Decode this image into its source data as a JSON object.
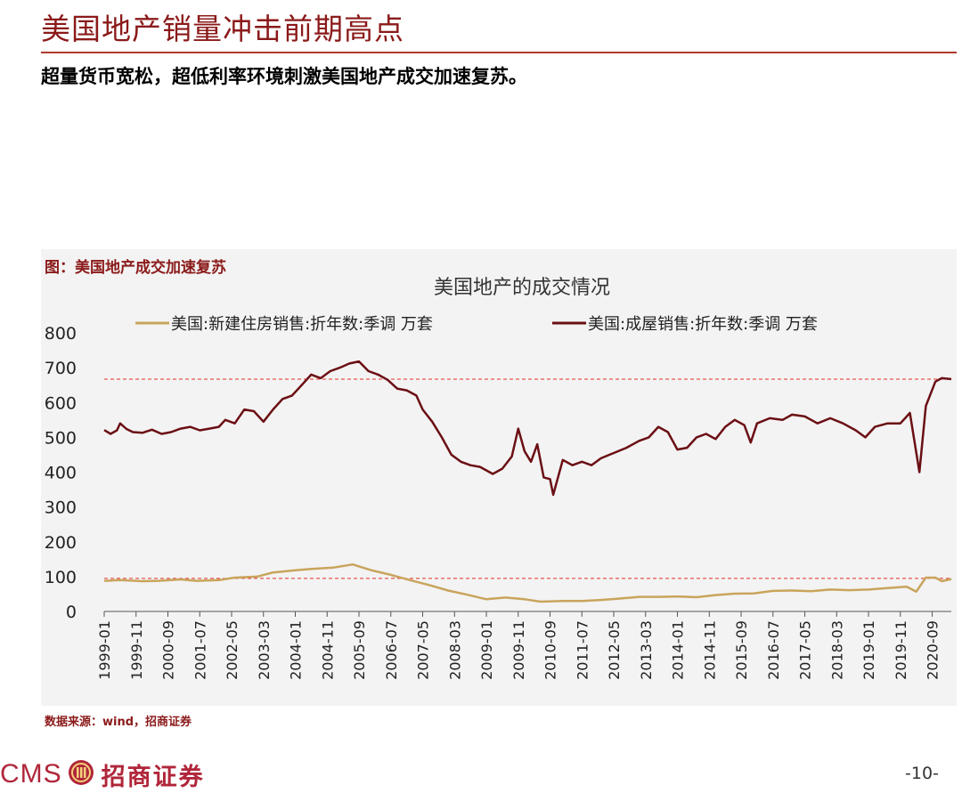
{
  "page": {
    "title": "美国地产销量冲击前期高点",
    "subtitle": "超量货币宽松，超低利率环境刺激美国地产成交加速复苏。",
    "figure_caption": "图：美国地产成交加速复苏",
    "source_note": "数据来源：wind，招商证券",
    "footer_logo_text": "CMS",
    "footer_brand": "招商证券",
    "page_number": "-10-"
  },
  "colors": {
    "title": "#8b1a1a",
    "panel": "#f3f3f3",
    "existing_series": "#6b0f14",
    "new_series": "#c9a45c",
    "reference_line": "#e0302a",
    "brand": "#b0263a"
  },
  "chart_data": {
    "type": "line",
    "title": "美国地产的成交情况",
    "xlabel": "",
    "ylabel": "",
    "ylim": [
      0,
      800
    ],
    "yticks": [
      "0",
      "100",
      "200",
      "300",
      "400",
      "500",
      "600",
      "700",
      "800"
    ],
    "x_start": "1999-01",
    "x_end": "2021-03",
    "x_tick_labels": [
      "1999-01",
      "1999-11",
      "2000-09",
      "2001-07",
      "2002-05",
      "2003-03",
      "2004-01",
      "2004-11",
      "2005-09",
      "2006-07",
      "2007-05",
      "2008-03",
      "2009-01",
      "2009-11",
      "2010-09",
      "2011-07",
      "2012-05",
      "2013-03",
      "2014-01",
      "2014-11",
      "2015-09",
      "2016-07",
      "2017-05",
      "2018-03",
      "2019-01",
      "2019-11",
      "2020-09"
    ],
    "grid": false,
    "legend_position": "top",
    "reference_lines": [
      {
        "y": 667
      },
      {
        "y": 95
      }
    ],
    "series": [
      {
        "name": "美国:新建住房销售:折年数:季调 万套",
        "color_key": "new_series",
        "points": [
          [
            "1999-01",
            88
          ],
          [
            "1999-06",
            90
          ],
          [
            "2000-01",
            87
          ],
          [
            "2000-06",
            88
          ],
          [
            "2001-01",
            92
          ],
          [
            "2001-06",
            88
          ],
          [
            "2002-01",
            90
          ],
          [
            "2002-06",
            97
          ],
          [
            "2003-01",
            100
          ],
          [
            "2003-06",
            112
          ],
          [
            "2004-01",
            118
          ],
          [
            "2004-06",
            122
          ],
          [
            "2005-01",
            126
          ],
          [
            "2005-07",
            135
          ],
          [
            "2006-01",
            118
          ],
          [
            "2006-07",
            105
          ],
          [
            "2007-01",
            90
          ],
          [
            "2007-07",
            76
          ],
          [
            "2008-01",
            60
          ],
          [
            "2008-07",
            48
          ],
          [
            "2009-01",
            35
          ],
          [
            "2009-07",
            40
          ],
          [
            "2010-01",
            35
          ],
          [
            "2010-06",
            28
          ],
          [
            "2011-01",
            30
          ],
          [
            "2011-07",
            30
          ],
          [
            "2012-01",
            33
          ],
          [
            "2012-07",
            37
          ],
          [
            "2013-01",
            42
          ],
          [
            "2013-07",
            42
          ],
          [
            "2014-01",
            43
          ],
          [
            "2014-07",
            41
          ],
          [
            "2015-01",
            47
          ],
          [
            "2015-07",
            51
          ],
          [
            "2016-01",
            52
          ],
          [
            "2016-07",
            59
          ],
          [
            "2017-01",
            60
          ],
          [
            "2017-07",
            58
          ],
          [
            "2018-01",
            63
          ],
          [
            "2018-07",
            61
          ],
          [
            "2019-01",
            63
          ],
          [
            "2019-07",
            67
          ],
          [
            "2020-01",
            71
          ],
          [
            "2020-04",
            57
          ],
          [
            "2020-07",
            97
          ],
          [
            "2020-10",
            97
          ],
          [
            "2020-12",
            87
          ],
          [
            "2021-03",
            93
          ]
        ]
      },
      {
        "name": "美国:成屋销售:折年数:季调 万套",
        "color_key": "existing_series",
        "points": [
          [
            "1999-01",
            521
          ],
          [
            "1999-03",
            510
          ],
          [
            "1999-05",
            520
          ],
          [
            "1999-06",
            540
          ],
          [
            "1999-08",
            524
          ],
          [
            "1999-10",
            515
          ],
          [
            "2000-01",
            513
          ],
          [
            "2000-04",
            522
          ],
          [
            "2000-07",
            510
          ],
          [
            "2000-10",
            515
          ],
          [
            "2001-01",
            525
          ],
          [
            "2001-04",
            530
          ],
          [
            "2001-07",
            520
          ],
          [
            "2001-10",
            525
          ],
          [
            "2002-01",
            530
          ],
          [
            "2002-03",
            550
          ],
          [
            "2002-06",
            540
          ],
          [
            "2002-09",
            580
          ],
          [
            "2002-12",
            575
          ],
          [
            "2003-03",
            545
          ],
          [
            "2003-06",
            580
          ],
          [
            "2003-09",
            610
          ],
          [
            "2003-12",
            620
          ],
          [
            "2004-03",
            650
          ],
          [
            "2004-06",
            680
          ],
          [
            "2004-09",
            670
          ],
          [
            "2004-12",
            690
          ],
          [
            "2005-03",
            700
          ],
          [
            "2005-06",
            712
          ],
          [
            "2005-09",
            718
          ],
          [
            "2005-12",
            690
          ],
          [
            "2006-03",
            680
          ],
          [
            "2006-06",
            665
          ],
          [
            "2006-09",
            640
          ],
          [
            "2006-12",
            635
          ],
          [
            "2007-03",
            620
          ],
          [
            "2007-05",
            580
          ],
          [
            "2007-08",
            545
          ],
          [
            "2007-11",
            500
          ],
          [
            "2008-02",
            450
          ],
          [
            "2008-05",
            430
          ],
          [
            "2008-08",
            420
          ],
          [
            "2008-11",
            415
          ],
          [
            "2009-01",
            405
          ],
          [
            "2009-03",
            395
          ],
          [
            "2009-06",
            410
          ],
          [
            "2009-09",
            445
          ],
          [
            "2009-11",
            525
          ],
          [
            "2010-01",
            460
          ],
          [
            "2010-03",
            430
          ],
          [
            "2010-05",
            480
          ],
          [
            "2010-07",
            385
          ],
          [
            "2010-09",
            380
          ],
          [
            "2010-10",
            335
          ],
          [
            "2011-01",
            435
          ],
          [
            "2011-04",
            420
          ],
          [
            "2011-07",
            430
          ],
          [
            "2011-10",
            420
          ],
          [
            "2012-01",
            440
          ],
          [
            "2012-05",
            455
          ],
          [
            "2012-09",
            470
          ],
          [
            "2013-01",
            490
          ],
          [
            "2013-04",
            500
          ],
          [
            "2013-07",
            530
          ],
          [
            "2013-10",
            515
          ],
          [
            "2014-01",
            465
          ],
          [
            "2014-04",
            470
          ],
          [
            "2014-07",
            500
          ],
          [
            "2014-10",
            510
          ],
          [
            "2015-01",
            495
          ],
          [
            "2015-04",
            530
          ],
          [
            "2015-07",
            550
          ],
          [
            "2015-10",
            535
          ],
          [
            "2015-12",
            485
          ],
          [
            "2016-02",
            540
          ],
          [
            "2016-06",
            555
          ],
          [
            "2016-10",
            550
          ],
          [
            "2017-01",
            565
          ],
          [
            "2017-05",
            560
          ],
          [
            "2017-09",
            540
          ],
          [
            "2018-01",
            555
          ],
          [
            "2018-05",
            540
          ],
          [
            "2018-09",
            520
          ],
          [
            "2018-12",
            500
          ],
          [
            "2019-03",
            530
          ],
          [
            "2019-07",
            540
          ],
          [
            "2019-11",
            540
          ],
          [
            "2020-02",
            570
          ],
          [
            "2020-05",
            400
          ],
          [
            "2020-07",
            590
          ],
          [
            "2020-10",
            660
          ],
          [
            "2020-12",
            670
          ],
          [
            "2021-03",
            667
          ]
        ]
      }
    ]
  }
}
